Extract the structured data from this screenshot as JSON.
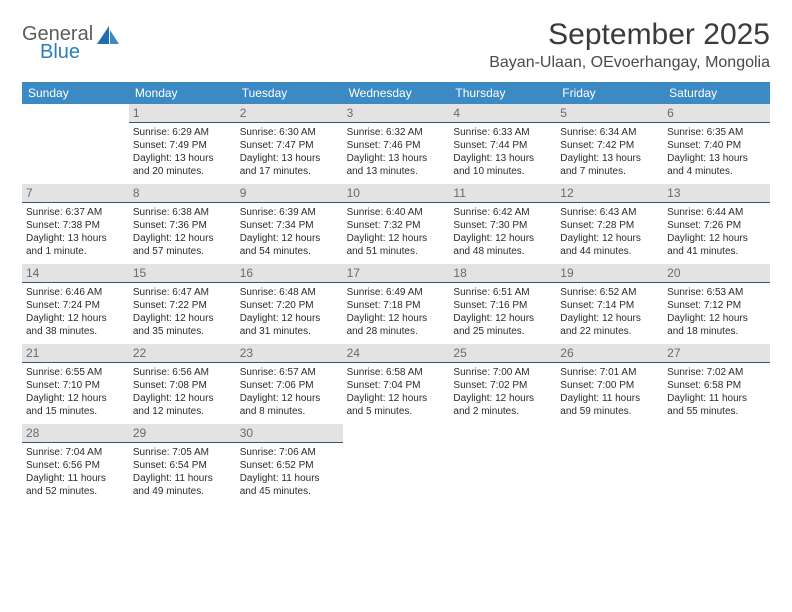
{
  "logo": {
    "general": "General",
    "blue": "Blue"
  },
  "title": "September 2025",
  "location": "Bayan-Ulaan, OEvoerhangay, Mongolia",
  "colors": {
    "header_bg": "#3b8ac4",
    "header_text": "#ffffff",
    "daynum_bg": "#e3e3e3",
    "daynum_text": "#6a6a6a",
    "daynum_border": "#2f587a",
    "body_text": "#2b2b2b",
    "title_text": "#3b3b3b",
    "logo_gray": "#5b5b5b",
    "logo_blue": "#2a7fba"
  },
  "day_names": [
    "Sunday",
    "Monday",
    "Tuesday",
    "Wednesday",
    "Thursday",
    "Friday",
    "Saturday"
  ],
  "weeks": [
    [
      null,
      {
        "n": "1",
        "sr": "6:29 AM",
        "ss": "7:49 PM",
        "dl": "13 hours and 20 minutes."
      },
      {
        "n": "2",
        "sr": "6:30 AM",
        "ss": "7:47 PM",
        "dl": "13 hours and 17 minutes."
      },
      {
        "n": "3",
        "sr": "6:32 AM",
        "ss": "7:46 PM",
        "dl": "13 hours and 13 minutes."
      },
      {
        "n": "4",
        "sr": "6:33 AM",
        "ss": "7:44 PM",
        "dl": "13 hours and 10 minutes."
      },
      {
        "n": "5",
        "sr": "6:34 AM",
        "ss": "7:42 PM",
        "dl": "13 hours and 7 minutes."
      },
      {
        "n": "6",
        "sr": "6:35 AM",
        "ss": "7:40 PM",
        "dl": "13 hours and 4 minutes."
      }
    ],
    [
      {
        "n": "7",
        "sr": "6:37 AM",
        "ss": "7:38 PM",
        "dl": "13 hours and 1 minute."
      },
      {
        "n": "8",
        "sr": "6:38 AM",
        "ss": "7:36 PM",
        "dl": "12 hours and 57 minutes."
      },
      {
        "n": "9",
        "sr": "6:39 AM",
        "ss": "7:34 PM",
        "dl": "12 hours and 54 minutes."
      },
      {
        "n": "10",
        "sr": "6:40 AM",
        "ss": "7:32 PM",
        "dl": "12 hours and 51 minutes."
      },
      {
        "n": "11",
        "sr": "6:42 AM",
        "ss": "7:30 PM",
        "dl": "12 hours and 48 minutes."
      },
      {
        "n": "12",
        "sr": "6:43 AM",
        "ss": "7:28 PM",
        "dl": "12 hours and 44 minutes."
      },
      {
        "n": "13",
        "sr": "6:44 AM",
        "ss": "7:26 PM",
        "dl": "12 hours and 41 minutes."
      }
    ],
    [
      {
        "n": "14",
        "sr": "6:46 AM",
        "ss": "7:24 PM",
        "dl": "12 hours and 38 minutes."
      },
      {
        "n": "15",
        "sr": "6:47 AM",
        "ss": "7:22 PM",
        "dl": "12 hours and 35 minutes."
      },
      {
        "n": "16",
        "sr": "6:48 AM",
        "ss": "7:20 PM",
        "dl": "12 hours and 31 minutes."
      },
      {
        "n": "17",
        "sr": "6:49 AM",
        "ss": "7:18 PM",
        "dl": "12 hours and 28 minutes."
      },
      {
        "n": "18",
        "sr": "6:51 AM",
        "ss": "7:16 PM",
        "dl": "12 hours and 25 minutes."
      },
      {
        "n": "19",
        "sr": "6:52 AM",
        "ss": "7:14 PM",
        "dl": "12 hours and 22 minutes."
      },
      {
        "n": "20",
        "sr": "6:53 AM",
        "ss": "7:12 PM",
        "dl": "12 hours and 18 minutes."
      }
    ],
    [
      {
        "n": "21",
        "sr": "6:55 AM",
        "ss": "7:10 PM",
        "dl": "12 hours and 15 minutes."
      },
      {
        "n": "22",
        "sr": "6:56 AM",
        "ss": "7:08 PM",
        "dl": "12 hours and 12 minutes."
      },
      {
        "n": "23",
        "sr": "6:57 AM",
        "ss": "7:06 PM",
        "dl": "12 hours and 8 minutes."
      },
      {
        "n": "24",
        "sr": "6:58 AM",
        "ss": "7:04 PM",
        "dl": "12 hours and 5 minutes."
      },
      {
        "n": "25",
        "sr": "7:00 AM",
        "ss": "7:02 PM",
        "dl": "12 hours and 2 minutes."
      },
      {
        "n": "26",
        "sr": "7:01 AM",
        "ss": "7:00 PM",
        "dl": "11 hours and 59 minutes."
      },
      {
        "n": "27",
        "sr": "7:02 AM",
        "ss": "6:58 PM",
        "dl": "11 hours and 55 minutes."
      }
    ],
    [
      {
        "n": "28",
        "sr": "7:04 AM",
        "ss": "6:56 PM",
        "dl": "11 hours and 52 minutes."
      },
      {
        "n": "29",
        "sr": "7:05 AM",
        "ss": "6:54 PM",
        "dl": "11 hours and 49 minutes."
      },
      {
        "n": "30",
        "sr": "7:06 AM",
        "ss": "6:52 PM",
        "dl": "11 hours and 45 minutes."
      },
      null,
      null,
      null,
      null
    ]
  ],
  "labels": {
    "sunrise": "Sunrise:",
    "sunset": "Sunset:",
    "daylight": "Daylight:"
  }
}
